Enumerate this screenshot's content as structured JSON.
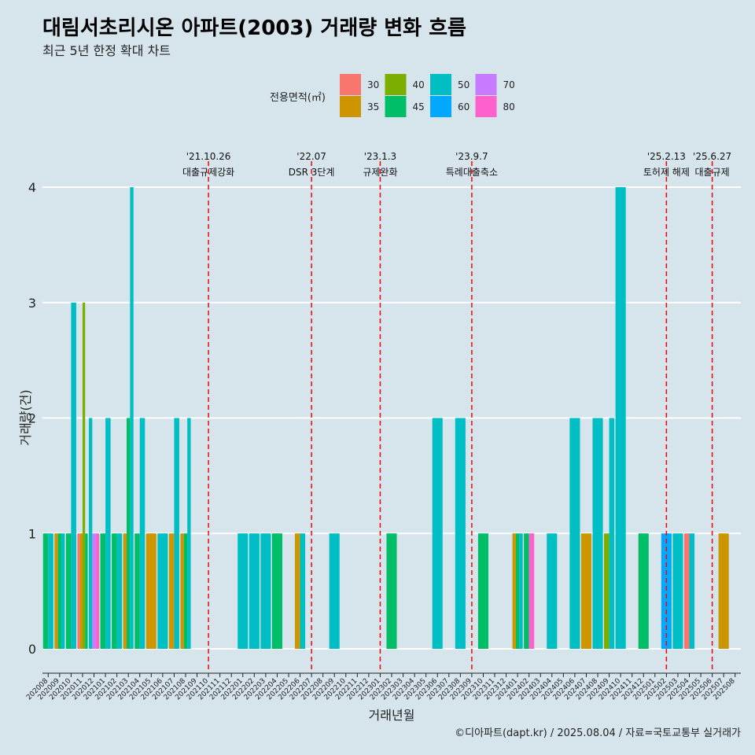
{
  "chart_data": {
    "type": "bar",
    "title": "대림서초리시온 아파트(2003) 거래량 변화 흐름",
    "subtitle": "최근 5년 한정 확대 차트",
    "xlabel": "거래년월",
    "ylabel": "거래량(건)",
    "ylim": [
      0,
      4
    ],
    "yticks": [
      0,
      1,
      2,
      3,
      4
    ],
    "grid": "horizontal",
    "legend": {
      "title": "전용면적(㎡)",
      "position": "top",
      "entries": [
        {
          "name": "30",
          "color": "#f8766d"
        },
        {
          "name": "35",
          "color": "#cd9600"
        },
        {
          "name": "40",
          "color": "#7cae00"
        },
        {
          "name": "45",
          "color": "#00be67"
        },
        {
          "name": "50",
          "color": "#00bfc4"
        },
        {
          "name": "60",
          "color": "#00a9ff"
        },
        {
          "name": "70",
          "color": "#c77cff"
        },
        {
          "name": "80",
          "color": "#ff61cc"
        }
      ]
    },
    "categories": [
      "202008",
      "202009",
      "202010",
      "202011",
      "202012",
      "202101",
      "202102",
      "202103",
      "202104",
      "202105",
      "202106",
      "202107",
      "202108",
      "202109",
      "202110",
      "202111",
      "202112",
      "202201",
      "202202",
      "202203",
      "202204",
      "202205",
      "202206",
      "202207",
      "202208",
      "202209",
      "202210",
      "202211",
      "202212",
      "202301",
      "202302",
      "202303",
      "202304",
      "202305",
      "202306",
      "202307",
      "202308",
      "202309",
      "202310",
      "202311",
      "202312",
      "202401",
      "202402",
      "202403",
      "202404",
      "202405",
      "202406",
      "202407",
      "202408",
      "202409",
      "202410",
      "202411",
      "202412",
      "202501",
      "202502",
      "202503",
      "202504",
      "202505",
      "202506",
      "202507",
      "202508"
    ],
    "months": [
      {
        "month": "202008",
        "groups": [
          [
            "45",
            1
          ],
          [
            "50",
            1
          ]
        ]
      },
      {
        "month": "202009",
        "groups": [
          [
            "35",
            1
          ],
          [
            "45",
            1
          ],
          [
            "50",
            1
          ]
        ]
      },
      {
        "month": "202010",
        "groups": [
          [
            "45",
            1
          ],
          [
            "50",
            3
          ]
        ]
      },
      {
        "month": "202011",
        "groups": [
          [
            "30",
            1
          ],
          [
            "35",
            1
          ],
          [
            "40",
            3
          ],
          [
            "45",
            1
          ]
        ]
      },
      {
        "month": "202012",
        "groups": [
          [
            "50",
            2
          ],
          [
            "70",
            1
          ],
          [
            "80",
            1
          ]
        ]
      },
      {
        "month": "202101",
        "groups": [
          [
            "45",
            1
          ],
          [
            "50",
            2
          ]
        ]
      },
      {
        "month": "202102",
        "groups": [
          [
            "45",
            1
          ],
          [
            "50",
            1
          ]
        ]
      },
      {
        "month": "202103",
        "groups": [
          [
            "35",
            1
          ],
          [
            "45",
            2
          ],
          [
            "50",
            4
          ]
        ]
      },
      {
        "month": "202104",
        "groups": [
          [
            "45",
            1
          ],
          [
            "50",
            2
          ]
        ]
      },
      {
        "month": "202105",
        "groups": [
          [
            "35",
            1
          ]
        ]
      },
      {
        "month": "202106",
        "groups": [
          [
            "50",
            1
          ]
        ]
      },
      {
        "month": "202107",
        "groups": [
          [
            "35",
            1
          ],
          [
            "50",
            2
          ]
        ]
      },
      {
        "month": "202108",
        "groups": [
          [
            "35",
            1
          ],
          [
            "45",
            1
          ],
          [
            "50",
            2
          ]
        ]
      },
      {
        "month": "202109",
        "groups": []
      },
      {
        "month": "202110",
        "groups": []
      },
      {
        "month": "202111",
        "groups": []
      },
      {
        "month": "202112",
        "groups": []
      },
      {
        "month": "202201",
        "groups": [
          [
            "50",
            1
          ]
        ]
      },
      {
        "month": "202202",
        "groups": [
          [
            "50",
            1
          ]
        ]
      },
      {
        "month": "202203",
        "groups": [
          [
            "50",
            1
          ]
        ]
      },
      {
        "month": "202204",
        "groups": [
          [
            "45",
            1
          ]
        ]
      },
      {
        "month": "202205",
        "groups": []
      },
      {
        "month": "202206",
        "groups": [
          [
            "35",
            1
          ],
          [
            "50",
            1
          ]
        ]
      },
      {
        "month": "202207",
        "groups": []
      },
      {
        "month": "202208",
        "groups": []
      },
      {
        "month": "202209",
        "groups": [
          [
            "50",
            1
          ]
        ]
      },
      {
        "month": "202210",
        "groups": []
      },
      {
        "month": "202211",
        "groups": []
      },
      {
        "month": "202212",
        "groups": []
      },
      {
        "month": "202301",
        "groups": []
      },
      {
        "month": "202302",
        "groups": [
          [
            "45",
            1
          ]
        ]
      },
      {
        "month": "202303",
        "groups": []
      },
      {
        "month": "202304",
        "groups": []
      },
      {
        "month": "202305",
        "groups": []
      },
      {
        "month": "202306",
        "groups": [
          [
            "50",
            2
          ]
        ]
      },
      {
        "month": "202307",
        "groups": []
      },
      {
        "month": "202308",
        "groups": [
          [
            "50",
            2
          ]
        ]
      },
      {
        "month": "202309",
        "groups": []
      },
      {
        "month": "202310",
        "groups": [
          [
            "45",
            1
          ]
        ]
      },
      {
        "month": "202311",
        "groups": []
      },
      {
        "month": "202312",
        "groups": []
      },
      {
        "month": "202401",
        "groups": [
          [
            "35",
            1
          ],
          [
            "45",
            1
          ],
          [
            "50",
            1
          ]
        ]
      },
      {
        "month": "202402",
        "groups": [
          [
            "45",
            1
          ],
          [
            "80",
            1
          ]
        ]
      },
      {
        "month": "202403",
        "groups": []
      },
      {
        "month": "202404",
        "groups": [
          [
            "50",
            1
          ]
        ]
      },
      {
        "month": "202405",
        "groups": []
      },
      {
        "month": "202406",
        "groups": [
          [
            "50",
            2
          ]
        ]
      },
      {
        "month": "202407",
        "groups": [
          [
            "35",
            1
          ]
        ]
      },
      {
        "month": "202408",
        "groups": [
          [
            "50",
            2
          ]
        ]
      },
      {
        "month": "202409",
        "groups": [
          [
            "40",
            1
          ],
          [
            "50",
            2
          ]
        ]
      },
      {
        "month": "202410",
        "groups": [
          [
            "50",
            4
          ]
        ]
      },
      {
        "month": "202411",
        "groups": []
      },
      {
        "month": "202412",
        "groups": [
          [
            "45",
            1
          ]
        ]
      },
      {
        "month": "202501",
        "groups": []
      },
      {
        "month": "202502",
        "groups": [
          [
            "60",
            1
          ]
        ]
      },
      {
        "month": "202503",
        "groups": [
          [
            "50",
            1
          ]
        ]
      },
      {
        "month": "202504",
        "groups": [
          [
            "30",
            1
          ],
          [
            "50",
            1
          ]
        ]
      },
      {
        "month": "202505",
        "groups": []
      },
      {
        "month": "202506",
        "groups": []
      },
      {
        "month": "202507",
        "groups": [
          [
            "35",
            1
          ]
        ]
      },
      {
        "month": "202508",
        "groups": []
      }
    ],
    "annotations": [
      {
        "month": "202110",
        "date": "'21.10.26",
        "label": "대출규제강화",
        "position": 0.5
      },
      {
        "month": "202207",
        "date": "'22.07",
        "label": "DSR 3단계",
        "position": 0.5
      },
      {
        "month": "202301",
        "date": "'23.1.3",
        "label": "규제완화",
        "position": 0.5
      },
      {
        "month": "202309",
        "date": "'23.9.7",
        "label": "특례대출축소",
        "position": 0.5
      },
      {
        "month": "202502",
        "date": "'25.2.13",
        "label": "토허제 해제",
        "position": 0.5
      },
      {
        "month": "202506",
        "date": "'25.6.27",
        "label": "대출규제",
        "position": 0.5
      }
    ],
    "caption": "©디아파트(dapt.kr) / 2025.08.04 / 자료=국토교통부 실거래가"
  }
}
